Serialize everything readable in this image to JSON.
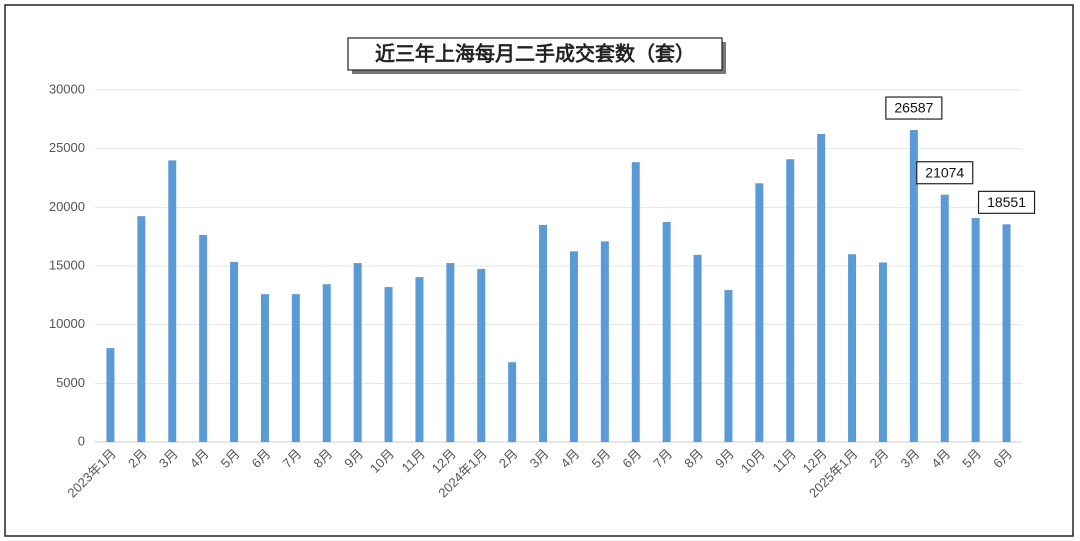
{
  "chart_data": {
    "type": "bar",
    "title": "近三年上海每月二手成交套数（套）",
    "categories": [
      "2023年1月",
      "2月",
      "3月",
      "4月",
      "5月",
      "6月",
      "7月",
      "8月",
      "9月",
      "10月",
      "11月",
      "12月",
      "2024年1月",
      "2月",
      "3月",
      "4月",
      "5月",
      "6月",
      "7月",
      "8月",
      "9月",
      "10月",
      "11月",
      "12月",
      "2025年1月",
      "2月",
      "3月",
      "4月",
      "5月",
      "6月"
    ],
    "values": [
      8000,
      19250,
      24000,
      17650,
      15350,
      12600,
      12600,
      13450,
      15250,
      13200,
      14050,
      15250,
      14750,
      6800,
      18500,
      16250,
      17100,
      23850,
      18750,
      15950,
      12950,
      22050,
      24100,
      26250,
      16000,
      15300,
      26587,
      21074,
      19100,
      18551
    ],
    "value_labels": [
      null,
      null,
      null,
      null,
      null,
      null,
      null,
      null,
      null,
      null,
      null,
      null,
      null,
      null,
      null,
      null,
      null,
      null,
      null,
      null,
      null,
      null,
      null,
      null,
      null,
      null,
      "26587",
      "21074",
      null,
      "18551"
    ],
    "color": "#5b9bd5",
    "ylim": [
      0,
      30000
    ],
    "yticks": [
      0,
      5000,
      10000,
      15000,
      20000,
      25000,
      30000
    ],
    "grid": true
  }
}
